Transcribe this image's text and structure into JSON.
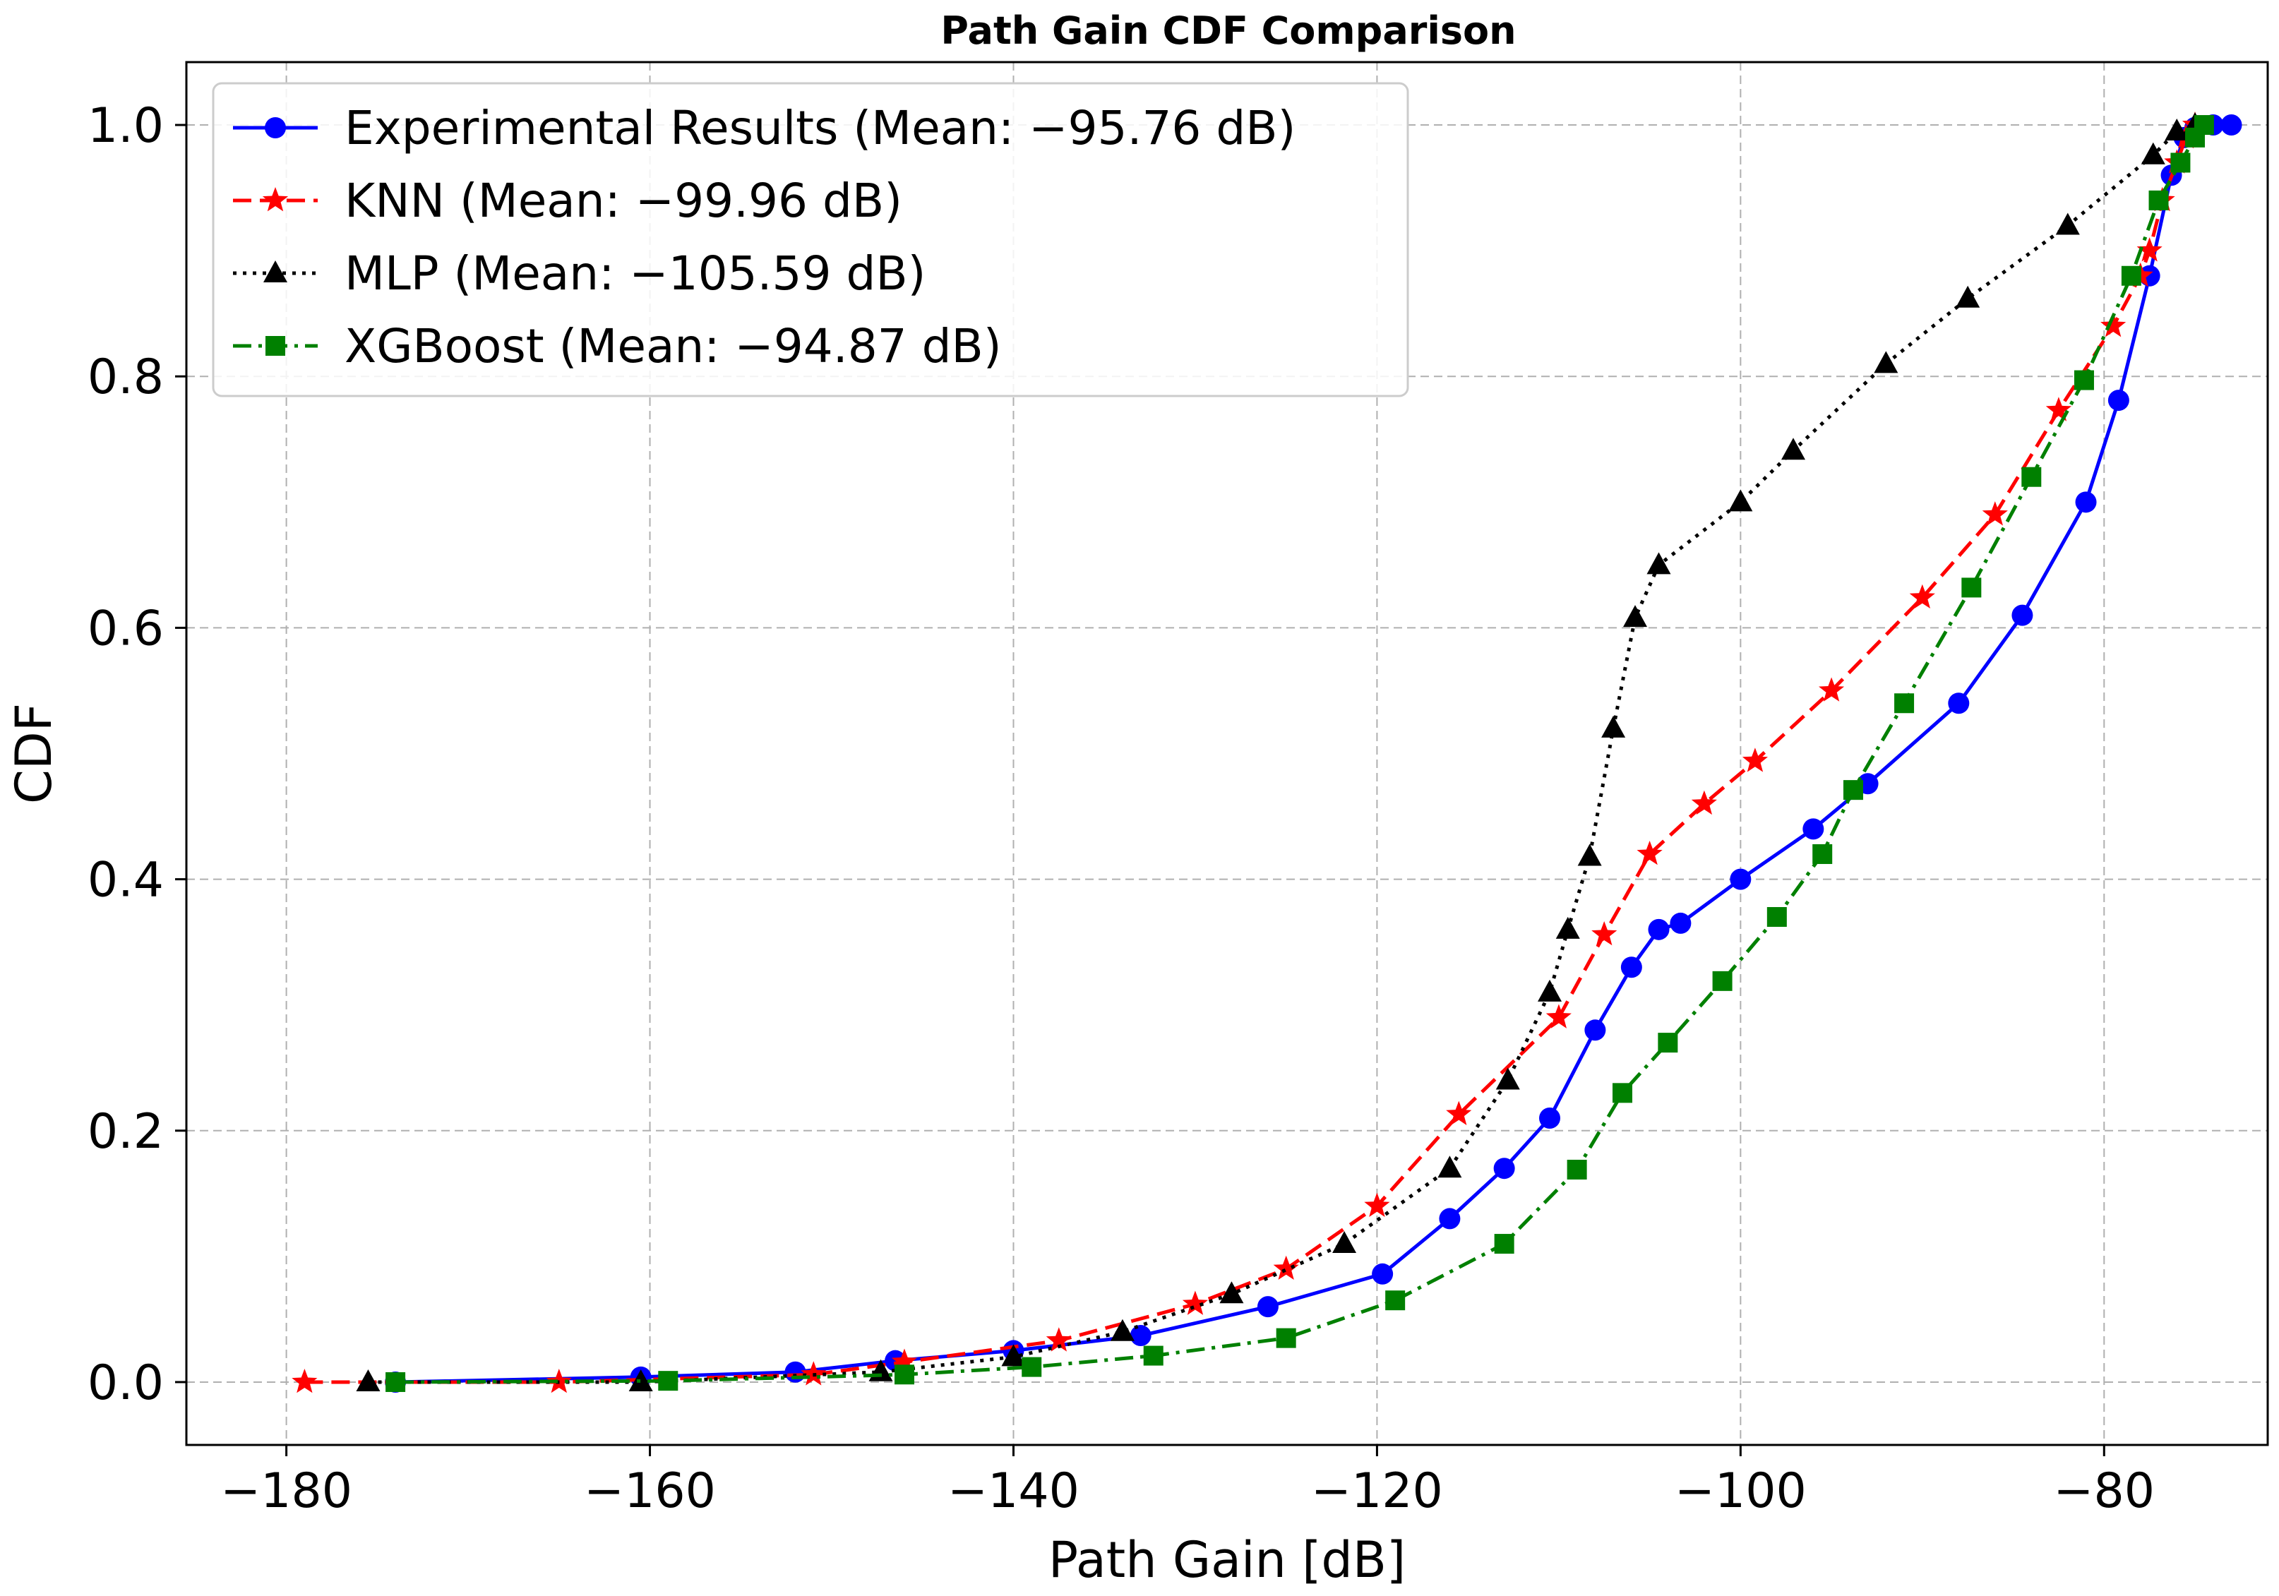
{
  "chart_data": {
    "type": "line",
    "title": "Path Gain CDF Comparison",
    "xlabel": "Path Gain [dB]",
    "ylabel": "CDF",
    "xlim": [
      -185.5,
      -71
    ],
    "ylim": [
      -0.05,
      1.05
    ],
    "xticks": [
      -180,
      -160,
      -140,
      -120,
      -100,
      -80
    ],
    "xtick_labels": [
      "−180",
      "−160",
      "−140",
      "−120",
      "−100",
      "−80"
    ],
    "yticks": [
      0.0,
      0.2,
      0.4,
      0.6,
      0.8,
      1.0
    ],
    "ytick_labels": [
      "0.0",
      "0.2",
      "0.4",
      "0.6",
      "0.8",
      "1.0"
    ],
    "grid": true,
    "legend_position": "top-left",
    "series": [
      {
        "name": "Experimental Results (Mean: −95.76 dB)",
        "color": "#0000ff",
        "line_style": "solid",
        "marker": "circle",
        "x": [
          -174,
          -160.5,
          -152,
          -146.5,
          -140,
          -133,
          -126,
          -119.7,
          -116,
          -113,
          -110.5,
          -108,
          -106,
          -104.5,
          -103.3,
          -100,
          -96,
          -93,
          -88,
          -84.5,
          -81,
          -79.2,
          -77.5,
          -76.3,
          -75.6,
          -75,
          -74,
          -73
        ],
        "y": [
          0,
          0.004,
          0.008,
          0.017,
          0.025,
          0.037,
          0.06,
          0.086,
          0.13,
          0.17,
          0.21,
          0.28,
          0.33,
          0.36,
          0.365,
          0.4,
          0.44,
          0.476,
          0.54,
          0.61,
          0.7,
          0.781,
          0.88,
          0.96,
          0.99,
          0.998,
          1.0,
          1.0
        ]
      },
      {
        "name": "KNN (Mean: −99.96 dB)",
        "color": "#ff0000",
        "line_style": "dashed",
        "marker": "star",
        "x": [
          -179,
          -165,
          -151,
          -146,
          -137.5,
          -130,
          -125,
          -120,
          -115.5,
          -110,
          -107.5,
          -105,
          -102,
          -99.2,
          -95,
          -90,
          -86,
          -82.5,
          -79.5,
          -78,
          -77.5,
          -76.8,
          -76,
          -75.5,
          -75
        ],
        "y": [
          0,
          0,
          0.006,
          0.016,
          0.033,
          0.062,
          0.09,
          0.14,
          0.213,
          0.29,
          0.356,
          0.42,
          0.46,
          0.494,
          0.55,
          0.624,
          0.69,
          0.773,
          0.84,
          0.88,
          0.9,
          0.94,
          0.97,
          0.99,
          1.0
        ]
      },
      {
        "name": "MLP (Mean: −105.59 dB)",
        "color": "#000000",
        "line_style": "dotted",
        "marker": "triangle",
        "x": [
          -175.5,
          -160.5,
          -147.3,
          -140,
          -134,
          -128,
          -121.8,
          -116,
          -112.8,
          -110.5,
          -109.5,
          -108.3,
          -107,
          -105.8,
          -104.5,
          -100,
          -97.1,
          -92,
          -87.5,
          -82,
          -77.3,
          -76,
          -75
        ],
        "y": [
          0,
          0,
          0.008,
          0.02,
          0.04,
          0.07,
          0.11,
          0.17,
          0.24,
          0.31,
          0.36,
          0.418,
          0.52,
          0.608,
          0.65,
          0.7,
          0.741,
          0.81,
          0.862,
          0.92,
          0.976,
          0.995,
          1.0
        ]
      },
      {
        "name": "XGBoost (Mean: −94.87 dB)",
        "color": "#008000",
        "line_style": "dashdot",
        "marker": "square",
        "x": [
          -174,
          -159,
          -146,
          -139,
          -132.3,
          -125,
          -119,
          -113,
          -109,
          -106.5,
          -104,
          -101,
          -98,
          -95.5,
          -93.8,
          -91,
          -87.3,
          -84,
          -81.1,
          -78.5,
          -77,
          -75.8,
          -75,
          -74.5
        ],
        "y": [
          0,
          0.001,
          0.006,
          0.012,
          0.021,
          0.035,
          0.065,
          0.11,
          0.169,
          0.23,
          0.27,
          0.319,
          0.37,
          0.42,
          0.471,
          0.54,
          0.632,
          0.72,
          0.797,
          0.88,
          0.94,
          0.97,
          0.99,
          1.0
        ]
      }
    ]
  }
}
